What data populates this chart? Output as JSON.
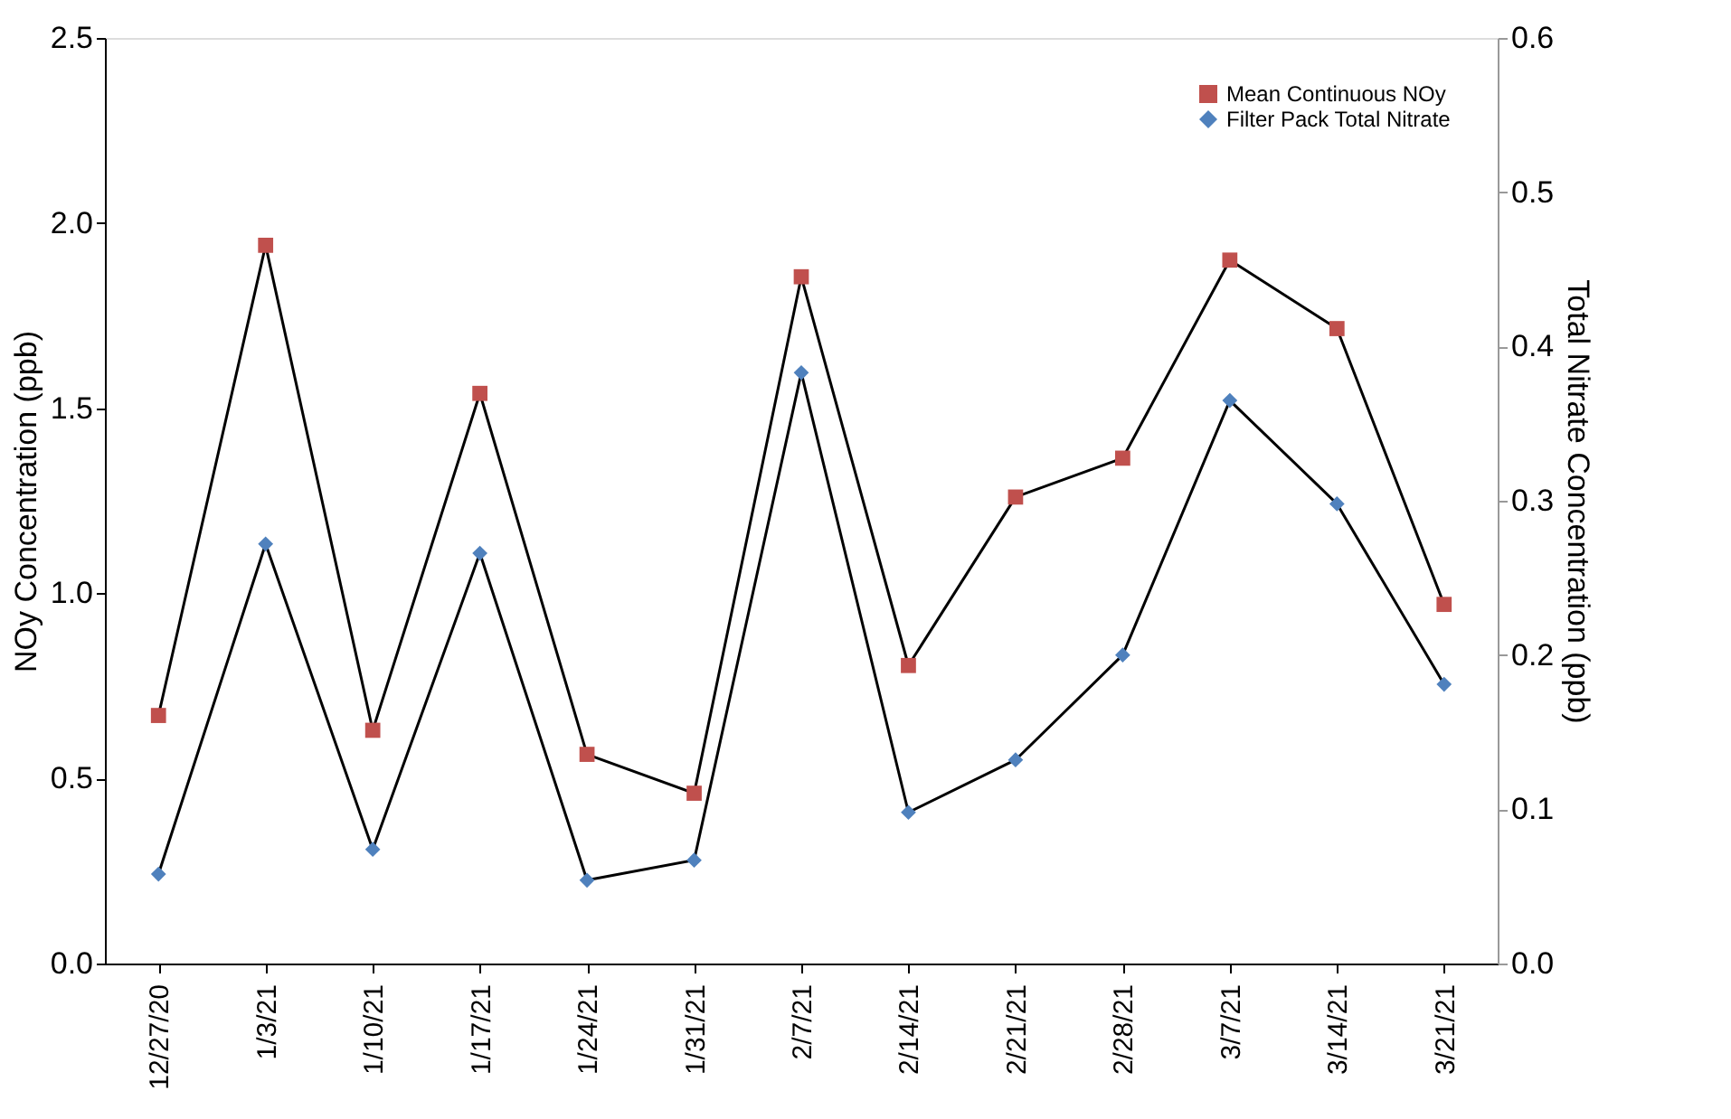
{
  "chart_data": {
    "type": "line",
    "categories": [
      "12/27/20",
      "1/3/21",
      "1/10/21",
      "1/17/21",
      "1/24/21",
      "1/31/21",
      "2/7/21",
      "2/14/21",
      "2/21/21",
      "2/28/21",
      "3/7/21",
      "3/14/21",
      "3/21/21"
    ],
    "series": [
      {
        "name": "Mean Continuous NOy",
        "color": "#c0504d",
        "marker": "square",
        "values": [
          0.67,
          1.94,
          0.63,
          1.54,
          0.565,
          0.46,
          1.855,
          0.805,
          1.26,
          1.365,
          1.9,
          1.715,
          0.97
        ]
      },
      {
        "name": "Filter Pack Total Nitrate",
        "color": "#4f81bd",
        "marker": "diamond",
        "axis": "y2",
        "values": [
          0.058,
          0.272,
          0.074,
          0.266,
          0.054,
          0.067,
          0.383,
          0.098,
          0.132,
          0.2,
          0.365,
          0.298,
          0.181
        ]
      }
    ],
    "ylabel": "NOy Concentration (ppb)",
    "y2label": "Total Nitrate Concentration (ppb)",
    "ylim": [
      0,
      2.5
    ],
    "yticks": [
      {
        "value": 0,
        "label": "0.0"
      },
      0.5,
      {
        "value": 1,
        "label": "1.0"
      },
      1.5,
      {
        "value": 2,
        "label": "2.0"
      },
      2.5
    ],
    "y2lim": [
      0,
      0.6
    ],
    "y2ticks": [
      {
        "value": 0,
        "label": "0.0"
      },
      0.1,
      0.2,
      0.3,
      0.4,
      0.5,
      0.6
    ],
    "grid": false,
    "legend": "top right",
    "line_style": "solid"
  }
}
